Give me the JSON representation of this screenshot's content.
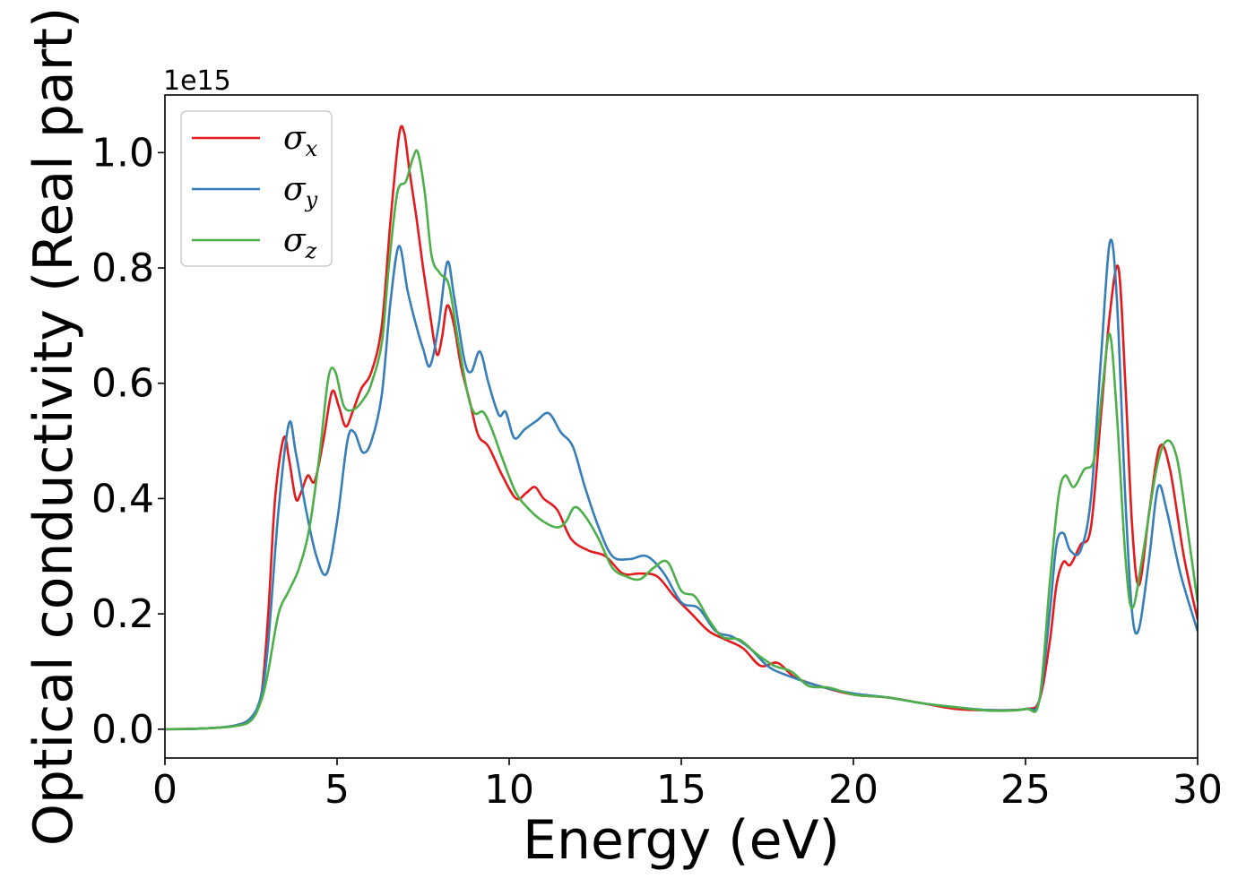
{
  "chart_data": {
    "type": "line",
    "xlabel": "Energy (eV)",
    "ylabel": "Optical conductivity (Real part)",
    "y_offset_text": "1e15",
    "xlim": [
      0,
      30
    ],
    "ylim": [
      -0.05,
      1.1
    ],
    "x_ticks": [
      0,
      5,
      10,
      15,
      20,
      25,
      30
    ],
    "x_tick_labels": [
      "0",
      "5",
      "10",
      "15",
      "20",
      "25",
      "30"
    ],
    "y_ticks": [
      0.0,
      0.2,
      0.4,
      0.6,
      0.8,
      1.0
    ],
    "y_tick_labels": [
      "0.0",
      "0.2",
      "0.4",
      "0.6",
      "0.8",
      "1.0"
    ],
    "grid": false,
    "legend_position": "top-left",
    "series": [
      {
        "name": "σx",
        "symbol": "σ",
        "subscript": "x",
        "color": "#e41a1c",
        "points": [
          [
            0,
            0
          ],
          [
            1,
            0.001
          ],
          [
            2,
            0.006
          ],
          [
            2.5,
            0.02
          ],
          [
            2.8,
            0.06
          ],
          [
            3.0,
            0.2
          ],
          [
            3.2,
            0.4
          ],
          [
            3.45,
            0.505
          ],
          [
            3.6,
            0.47
          ],
          [
            3.8,
            0.4
          ],
          [
            3.95,
            0.41
          ],
          [
            4.15,
            0.44
          ],
          [
            4.35,
            0.43
          ],
          [
            4.6,
            0.5
          ],
          [
            4.85,
            0.585
          ],
          [
            5.05,
            0.56
          ],
          [
            5.25,
            0.525
          ],
          [
            5.45,
            0.55
          ],
          [
            5.7,
            0.59
          ],
          [
            6.0,
            0.62
          ],
          [
            6.3,
            0.7
          ],
          [
            6.55,
            0.88
          ],
          [
            6.8,
            1.03
          ],
          [
            6.95,
            1.035
          ],
          [
            7.1,
            0.97
          ],
          [
            7.3,
            0.89
          ],
          [
            7.5,
            0.8
          ],
          [
            7.7,
            0.72
          ],
          [
            7.9,
            0.65
          ],
          [
            8.05,
            0.68
          ],
          [
            8.2,
            0.735
          ],
          [
            8.4,
            0.7
          ],
          [
            8.6,
            0.63
          ],
          [
            8.85,
            0.57
          ],
          [
            9.1,
            0.51
          ],
          [
            9.4,
            0.49
          ],
          [
            9.8,
            0.44
          ],
          [
            10.2,
            0.4
          ],
          [
            10.5,
            0.41
          ],
          [
            10.75,
            0.42
          ],
          [
            11.0,
            0.4
          ],
          [
            11.4,
            0.38
          ],
          [
            11.8,
            0.33
          ],
          [
            12.3,
            0.31
          ],
          [
            12.8,
            0.3
          ],
          [
            13.3,
            0.27
          ],
          [
            13.8,
            0.27
          ],
          [
            14.3,
            0.265
          ],
          [
            14.8,
            0.23
          ],
          [
            15.3,
            0.2
          ],
          [
            15.8,
            0.17
          ],
          [
            16.3,
            0.155
          ],
          [
            16.8,
            0.14
          ],
          [
            17.3,
            0.11
          ],
          [
            17.8,
            0.115
          ],
          [
            18.3,
            0.09
          ],
          [
            19,
            0.075
          ],
          [
            20,
            0.06
          ],
          [
            21,
            0.055
          ],
          [
            22,
            0.045
          ],
          [
            23,
            0.035
          ],
          [
            24,
            0.033
          ],
          [
            25,
            0.035
          ],
          [
            25.4,
            0.05
          ],
          [
            25.7,
            0.15
          ],
          [
            25.9,
            0.25
          ],
          [
            26.1,
            0.29
          ],
          [
            26.3,
            0.285
          ],
          [
            26.6,
            0.32
          ],
          [
            26.9,
            0.35
          ],
          [
            27.2,
            0.55
          ],
          [
            27.45,
            0.72
          ],
          [
            27.7,
            0.8
          ],
          [
            27.9,
            0.6
          ],
          [
            28.1,
            0.35
          ],
          [
            28.3,
            0.25
          ],
          [
            28.6,
            0.38
          ],
          [
            28.9,
            0.49
          ],
          [
            29.2,
            0.45
          ],
          [
            29.6,
            0.3
          ],
          [
            30,
            0.19
          ]
        ]
      },
      {
        "name": "σy",
        "symbol": "σ",
        "subscript": "y",
        "color": "#377eb8",
        "points": [
          [
            0,
            0
          ],
          [
            1,
            0.001
          ],
          [
            2,
            0.006
          ],
          [
            2.5,
            0.02
          ],
          [
            2.8,
            0.06
          ],
          [
            3.0,
            0.15
          ],
          [
            3.3,
            0.38
          ],
          [
            3.6,
            0.53
          ],
          [
            3.8,
            0.48
          ],
          [
            4.1,
            0.38
          ],
          [
            4.4,
            0.3
          ],
          [
            4.7,
            0.27
          ],
          [
            5.0,
            0.36
          ],
          [
            5.3,
            0.5
          ],
          [
            5.5,
            0.515
          ],
          [
            5.75,
            0.48
          ],
          [
            6.0,
            0.5
          ],
          [
            6.3,
            0.58
          ],
          [
            6.55,
            0.74
          ],
          [
            6.8,
            0.838
          ],
          [
            7.05,
            0.76
          ],
          [
            7.3,
            0.7
          ],
          [
            7.5,
            0.66
          ],
          [
            7.7,
            0.63
          ],
          [
            7.95,
            0.7
          ],
          [
            8.2,
            0.81
          ],
          [
            8.4,
            0.75
          ],
          [
            8.7,
            0.64
          ],
          [
            8.9,
            0.62
          ],
          [
            9.15,
            0.655
          ],
          [
            9.4,
            0.6
          ],
          [
            9.7,
            0.545
          ],
          [
            9.9,
            0.55
          ],
          [
            10.15,
            0.505
          ],
          [
            10.45,
            0.52
          ],
          [
            10.8,
            0.535
          ],
          [
            11.15,
            0.548
          ],
          [
            11.5,
            0.515
          ],
          [
            11.85,
            0.49
          ],
          [
            12.2,
            0.42
          ],
          [
            12.6,
            0.35
          ],
          [
            13.0,
            0.3
          ],
          [
            13.5,
            0.295
          ],
          [
            14.0,
            0.3
          ],
          [
            14.5,
            0.27
          ],
          [
            15.0,
            0.22
          ],
          [
            15.5,
            0.21
          ],
          [
            16.0,
            0.17
          ],
          [
            16.5,
            0.16
          ],
          [
            17.0,
            0.14
          ],
          [
            17.5,
            0.11
          ],
          [
            18.0,
            0.095
          ],
          [
            19,
            0.075
          ],
          [
            20,
            0.062
          ],
          [
            21,
            0.055
          ],
          [
            22,
            0.045
          ],
          [
            23,
            0.038
          ],
          [
            24,
            0.033
          ],
          [
            25,
            0.035
          ],
          [
            25.4,
            0.05
          ],
          [
            25.7,
            0.2
          ],
          [
            25.9,
            0.32
          ],
          [
            26.1,
            0.34
          ],
          [
            26.3,
            0.31
          ],
          [
            26.6,
            0.31
          ],
          [
            26.9,
            0.4
          ],
          [
            27.2,
            0.65
          ],
          [
            27.45,
            0.845
          ],
          [
            27.65,
            0.75
          ],
          [
            27.9,
            0.4
          ],
          [
            28.1,
            0.2
          ],
          [
            28.3,
            0.175
          ],
          [
            28.6,
            0.3
          ],
          [
            28.85,
            0.42
          ],
          [
            29.1,
            0.38
          ],
          [
            29.5,
            0.27
          ],
          [
            30,
            0.17
          ]
        ]
      },
      {
        "name": "σz",
        "symbol": "σ",
        "subscript": "z",
        "color": "#4daf4a",
        "points": [
          [
            0,
            0
          ],
          [
            1,
            0.001
          ],
          [
            2,
            0.005
          ],
          [
            2.5,
            0.015
          ],
          [
            2.8,
            0.05
          ],
          [
            3.0,
            0.1
          ],
          [
            3.3,
            0.2
          ],
          [
            3.6,
            0.24
          ],
          [
            3.9,
            0.28
          ],
          [
            4.2,
            0.35
          ],
          [
            4.5,
            0.48
          ],
          [
            4.75,
            0.61
          ],
          [
            4.95,
            0.62
          ],
          [
            5.2,
            0.56
          ],
          [
            5.5,
            0.555
          ],
          [
            5.8,
            0.575
          ],
          [
            6.0,
            0.6
          ],
          [
            6.3,
            0.67
          ],
          [
            6.5,
            0.8
          ],
          [
            6.75,
            0.93
          ],
          [
            7.0,
            0.95
          ],
          [
            7.2,
            0.99
          ],
          [
            7.35,
            1.0
          ],
          [
            7.55,
            0.93
          ],
          [
            7.75,
            0.82
          ],
          [
            8.0,
            0.79
          ],
          [
            8.25,
            0.77
          ],
          [
            8.5,
            0.68
          ],
          [
            8.8,
            0.58
          ],
          [
            9.0,
            0.548
          ],
          [
            9.25,
            0.55
          ],
          [
            9.5,
            0.52
          ],
          [
            9.8,
            0.47
          ],
          [
            10.2,
            0.41
          ],
          [
            10.6,
            0.38
          ],
          [
            11.0,
            0.36
          ],
          [
            11.4,
            0.35
          ],
          [
            11.65,
            0.36
          ],
          [
            11.9,
            0.385
          ],
          [
            12.2,
            0.37
          ],
          [
            12.6,
            0.33
          ],
          [
            13.0,
            0.28
          ],
          [
            13.4,
            0.265
          ],
          [
            13.8,
            0.26
          ],
          [
            14.2,
            0.28
          ],
          [
            14.6,
            0.29
          ],
          [
            15.0,
            0.24
          ],
          [
            15.4,
            0.23
          ],
          [
            15.8,
            0.19
          ],
          [
            16.2,
            0.16
          ],
          [
            16.7,
            0.155
          ],
          [
            17.2,
            0.13
          ],
          [
            17.7,
            0.11
          ],
          [
            18.2,
            0.1
          ],
          [
            18.7,
            0.075
          ],
          [
            19.3,
            0.072
          ],
          [
            20,
            0.06
          ],
          [
            21,
            0.055
          ],
          [
            22,
            0.045
          ],
          [
            23,
            0.038
          ],
          [
            24,
            0.032
          ],
          [
            25,
            0.035
          ],
          [
            25.4,
            0.05
          ],
          [
            25.7,
            0.25
          ],
          [
            25.95,
            0.4
          ],
          [
            26.15,
            0.44
          ],
          [
            26.4,
            0.42
          ],
          [
            26.7,
            0.45
          ],
          [
            27.0,
            0.47
          ],
          [
            27.25,
            0.6
          ],
          [
            27.45,
            0.685
          ],
          [
            27.65,
            0.55
          ],
          [
            27.9,
            0.3
          ],
          [
            28.1,
            0.21
          ],
          [
            28.4,
            0.3
          ],
          [
            28.8,
            0.45
          ],
          [
            29.1,
            0.5
          ],
          [
            29.4,
            0.47
          ],
          [
            29.7,
            0.35
          ],
          [
            30,
            0.22
          ]
        ]
      }
    ]
  }
}
